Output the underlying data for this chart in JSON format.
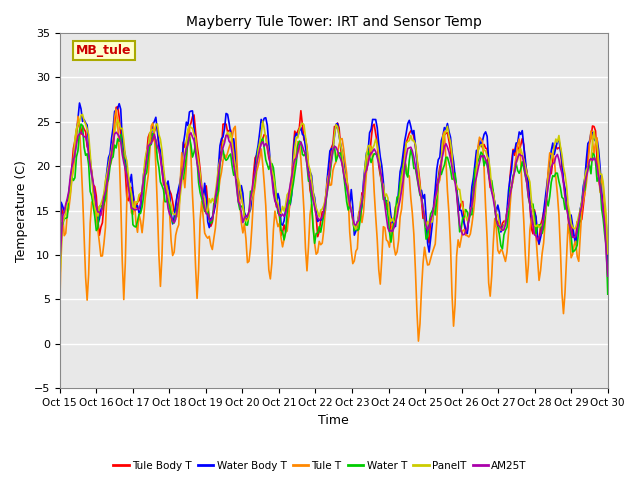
{
  "title": "Mayberry Tule Tower: IRT and Sensor Temp",
  "xlabel": "Time",
  "ylabel": "Temperature (C)",
  "ylim": [
    -5,
    35
  ],
  "yticks": [
    -5,
    0,
    5,
    10,
    15,
    20,
    25,
    30,
    35
  ],
  "xlim": [
    0,
    360
  ],
  "xtick_positions": [
    0,
    24,
    48,
    72,
    96,
    120,
    144,
    168,
    192,
    216,
    240,
    264,
    288,
    312,
    336,
    360
  ],
  "xtick_labels": [
    "Oct 15",
    "Oct 16",
    "Oct 17",
    "Oct 18",
    "Oct 19",
    "Oct 20",
    "Oct 21",
    "Oct 22",
    "Oct 23",
    "Oct 24",
    "Oct 25",
    "Oct 26",
    "Oct 27",
    "Oct 28",
    "Oct 29",
    "Oct 30"
  ],
  "series": [
    {
      "name": "Tule Body T",
      "color": "#ff0000",
      "lw": 1.2
    },
    {
      "name": "Water Body T",
      "color": "#0000ff",
      "lw": 1.2
    },
    {
      "name": "Tule T",
      "color": "#ff8800",
      "lw": 1.2
    },
    {
      "name": "Water T",
      "color": "#00cc00",
      "lw": 1.2
    },
    {
      "name": "PanelT",
      "color": "#cccc00",
      "lw": 1.2
    },
    {
      "name": "AM25T",
      "color": "#aa00aa",
      "lw": 1.2
    }
  ],
  "annotation_text": "MB_tule",
  "annotation_color": "#cc0000",
  "annotation_bg": "#ffffcc",
  "annotation_border": "#aaaa00",
  "bg_color": "#e8e8e8",
  "grid_color": "#ffffff"
}
